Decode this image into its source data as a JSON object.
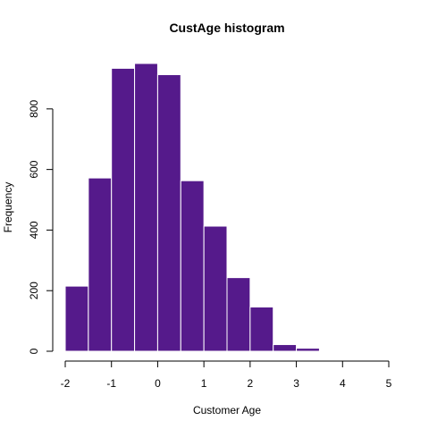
{
  "chart_data": {
    "type": "bar",
    "title": "CustAge histogram",
    "xlabel": "Customer Age",
    "ylabel": "Frequency",
    "bin_edges": [
      -2,
      -1.5,
      -1,
      -0.5,
      0,
      0.5,
      1,
      1.5,
      2,
      2.5,
      3,
      3.5,
      4,
      4.5,
      5
    ],
    "values": [
      215,
      572,
      934,
      950,
      913,
      563,
      413,
      243,
      146,
      22,
      10,
      1,
      2,
      1
    ],
    "xlim": [
      -2,
      5
    ],
    "ylim": [
      0,
      950
    ],
    "xticks": [
      -2,
      -1,
      0,
      1,
      2,
      3,
      4,
      5
    ],
    "xtick_labels": [
      "-2",
      "-1",
      "0",
      "1",
      "2",
      "3",
      "4",
      "5"
    ],
    "yticks": [
      0,
      200,
      400,
      600,
      800
    ],
    "ytick_labels": [
      "0",
      "200",
      "400",
      "600",
      "800"
    ],
    "bar_color": "#551a8b",
    "bar_border_color": "#ffffff",
    "small_bar_color": "#d6f5f5",
    "grid": false,
    "legend": "none"
  }
}
